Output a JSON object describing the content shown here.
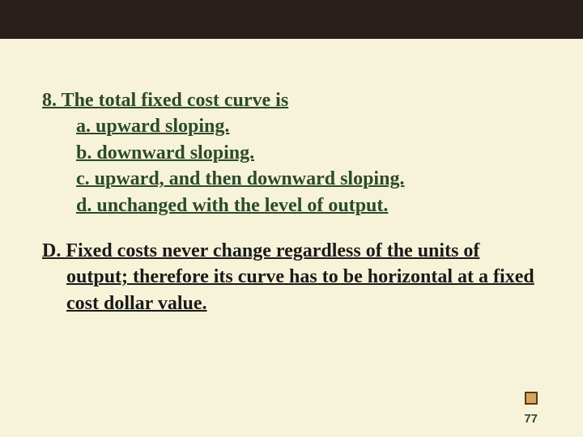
{
  "slide": {
    "background_color": "#f7f3d9",
    "top_bar_color": "#2a1f1a",
    "question": {
      "text_color": "#2c4a2c",
      "font_size_pt": 18,
      "font_weight": "bold",
      "underline": true,
      "stem": "8. The total fixed cost curve is",
      "options": [
        "a. upward sloping.",
        "b. downward sloping.",
        "c. upward, and then downward sloping.",
        "d. unchanged with the level of output."
      ]
    },
    "answer": {
      "text_color": "#1a1a1a",
      "font_size_pt": 18,
      "font_weight": "bold",
      "underline": true,
      "text": "D. Fixed costs never change regardless of the units of output; therefore its curve has to be horizontal at a fixed cost dollar value."
    },
    "page_number": "77",
    "corner_icon": {
      "fill_color": "#d4a85a",
      "border_color": "#5a3a1a"
    }
  }
}
